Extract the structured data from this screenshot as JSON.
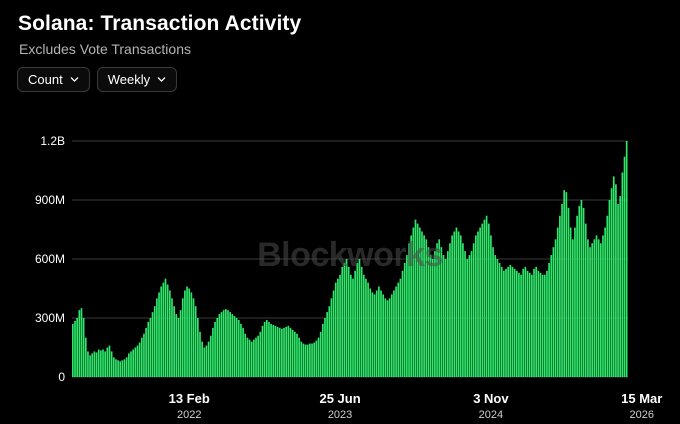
{
  "header": {
    "title": "Solana: Transaction Activity",
    "subtitle": "Excludes Vote Transactions"
  },
  "controls": {
    "metric": {
      "label": "Count",
      "icon": "chevron-down-icon"
    },
    "interval": {
      "label": "Weekly",
      "icon": "chevron-down-icon"
    }
  },
  "watermark": "Blockworks",
  "colors": {
    "background": "#000000",
    "bar": "#2ee86a",
    "grid": "#3a3a3a"
  },
  "chart_data": {
    "type": "bar",
    "title": "Solana: Transaction Activity",
    "subtitle": "Excludes Vote Transactions",
    "xlabel": "",
    "ylabel": "",
    "ylim": [
      0,
      1200000000
    ],
    "y_ticks": [
      {
        "value": 0,
        "label": "0"
      },
      {
        "value": 300000000,
        "label": "300M"
      },
      {
        "value": 600000000,
        "label": "600M"
      },
      {
        "value": 900000000,
        "label": "900M"
      },
      {
        "value": 1200000000,
        "label": "1.2B"
      }
    ],
    "x_ticks": [
      {
        "week_index": 54,
        "label": "13 Feb",
        "sublabel": "2022"
      },
      {
        "week_index": 124,
        "label": "25 Jun",
        "sublabel": "2023"
      },
      {
        "week_index": 194,
        "label": "3 Nov",
        "sublabel": "2024"
      },
      {
        "week_index": 264,
        "label": "15 Mar",
        "sublabel": "2026"
      }
    ],
    "grid": true,
    "legend": "none",
    "series": [
      {
        "values": [
          270,
          285,
          300,
          340,
          350,
          300,
          200,
          130,
          110,
          120,
          130,
          125,
          140,
          135,
          140,
          130,
          150,
          160,
          130,
          100,
          90,
          85,
          80,
          85,
          90,
          100,
          120,
          130,
          140,
          150,
          160,
          175,
          200,
          220,
          250,
          280,
          300,
          330,
          360,
          400,
          430,
          460,
          480,
          500,
          470,
          440,
          400,
          360,
          320,
          300,
          340,
          400,
          440,
          460,
          450,
          430,
          400,
          360,
          300,
          230,
          180,
          150,
          160,
          180,
          210,
          250,
          280,
          300,
          320,
          330,
          340,
          345,
          340,
          330,
          320,
          310,
          300,
          290,
          270,
          250,
          220,
          200,
          190,
          180,
          190,
          200,
          210,
          230,
          260,
          280,
          290,
          280,
          270,
          265,
          260,
          255,
          250,
          245,
          250,
          255,
          260,
          250,
          240,
          230,
          220,
          200,
          180,
          170,
          165,
          165,
          170,
          170,
          175,
          185,
          200,
          230,
          270,
          300,
          330,
          360,
          400,
          440,
          480,
          500,
          520,
          560,
          580,
          600,
          560,
          520,
          500,
          540,
          580,
          600,
          560,
          520,
          500,
          480,
          450,
          430,
          420,
          440,
          460,
          440,
          420,
          400,
          390,
          400,
          420,
          440,
          460,
          480,
          500,
          540,
          580,
          620,
          680,
          720,
          760,
          800,
          780,
          760,
          740,
          720,
          700,
          660,
          620,
          600,
          640,
          680,
          700,
          660,
          620,
          600,
          640,
          680,
          720,
          740,
          760,
          740,
          720,
          680,
          640,
          600,
          620,
          640,
          680,
          720,
          740,
          760,
          780,
          800,
          820,
          780,
          720,
          660,
          620,
          600,
          580,
          560,
          540,
          550,
          560,
          570,
          560,
          550,
          540,
          530,
          520,
          550,
          560,
          540,
          530,
          520,
          550,
          560,
          540,
          530,
          520,
          520,
          540,
          580,
          620,
          660,
          700,
          760,
          820,
          880,
          950,
          940,
          860,
          760,
          700,
          760,
          820,
          870,
          900,
          860,
          780,
          700,
          660,
          680,
          700,
          720,
          700,
          680,
          720,
          760,
          820,
          900,
          960,
          1020,
          980,
          880,
          920,
          1040,
          1120,
          1200
        ]
      }
    ]
  }
}
